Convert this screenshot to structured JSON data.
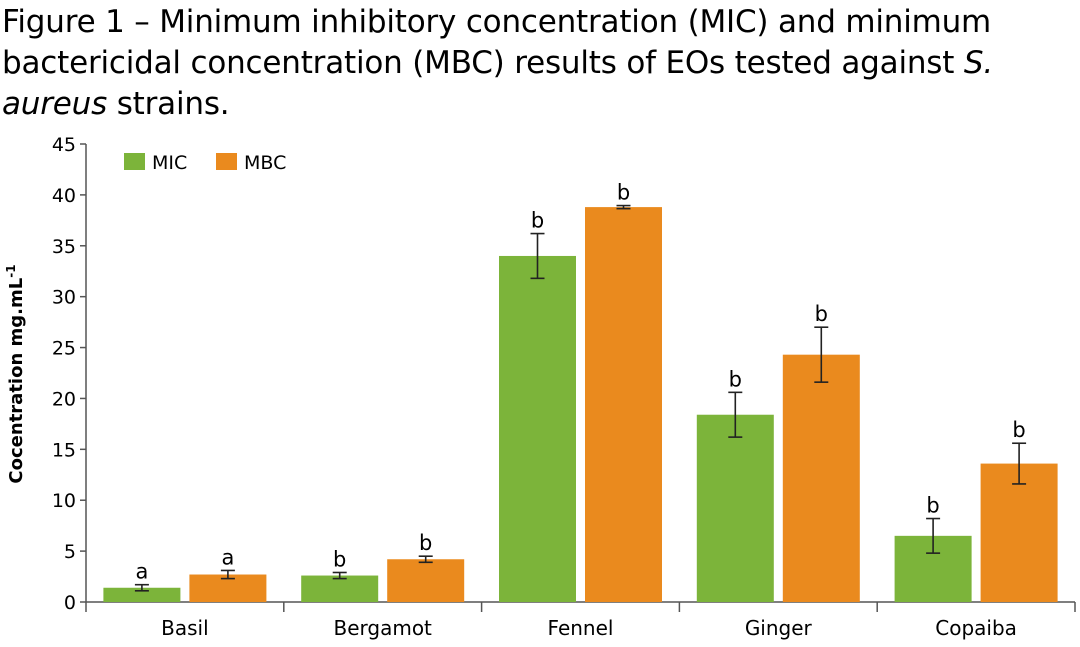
{
  "title": {
    "prefix": "Figure 1 – Minimum inhibitory concentration (MIC) and minimum bactericidal concentration (MBC) results of EOs tested against ",
    "italic": "S. aureus",
    "suffix": " strains."
  },
  "chart_data": {
    "type": "bar",
    "categories": [
      "Basil",
      "Bergamot",
      "Fennel",
      "Ginger",
      "Copaiba"
    ],
    "series": [
      {
        "name": "MIC",
        "color": "#7cb43a",
        "values": [
          1.4,
          2.6,
          34.0,
          18.4,
          6.5
        ],
        "errors": [
          0.3,
          0.3,
          2.2,
          2.2,
          1.7
        ],
        "sig": [
          "a",
          "b",
          "b",
          "b",
          "b"
        ]
      },
      {
        "name": "MBC",
        "color": "#ea8a1e",
        "values": [
          2.7,
          4.2,
          38.8,
          24.3,
          13.6
        ],
        "errors": [
          0.4,
          0.3,
          0.15,
          2.7,
          2.0
        ],
        "sig": [
          "a",
          "b",
          "b",
          "b",
          "b"
        ]
      }
    ],
    "ylabel": "Cocentration mg.mL",
    "ylabel_sup": "-1",
    "ylim": [
      0,
      45
    ],
    "yticks": [
      0,
      5,
      10,
      15,
      20,
      25,
      30,
      35,
      40,
      45
    ],
    "grid": false,
    "legend": "top-left"
  }
}
